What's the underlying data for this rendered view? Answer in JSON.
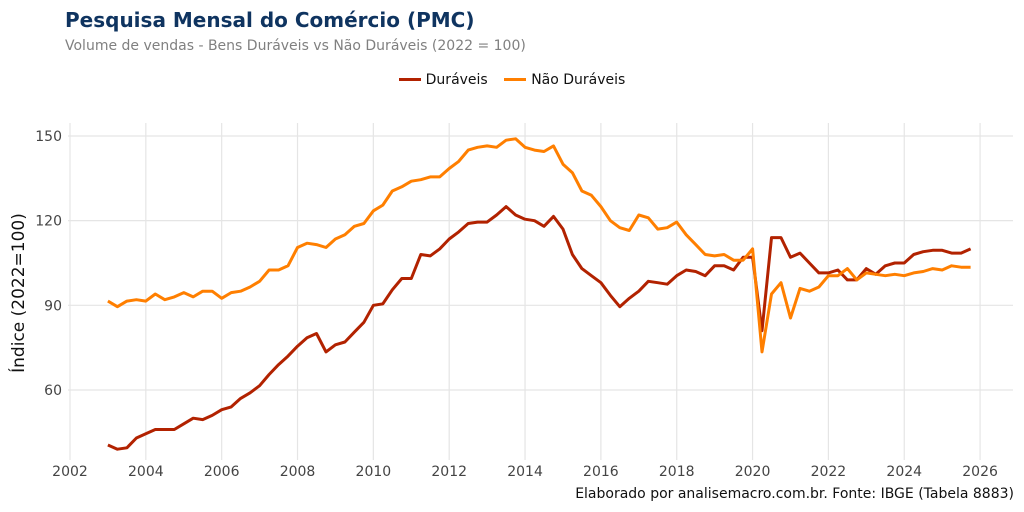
{
  "title": "Pesquisa Mensal do Comércio (PMC)",
  "subtitle": "Volume de vendas - Bens Duráveis vs Não Duráveis (2022 = 100)",
  "caption": "Elaborado por analisemacro.com.br. Fonte: IBGE (Tabela 8883)",
  "chart_data": {
    "type": "line",
    "title": "Pesquisa Mensal do Comércio (PMC)",
    "subtitle": "Volume de vendas - Bens Duráveis vs Não Duráveis (2022 = 100)",
    "xlabel": "",
    "ylabel": "Índice (2022=100)",
    "xlim": [
      2002,
      2026.9
    ],
    "ylim": [
      35,
      154.5
    ],
    "xticks": [
      2002,
      2004,
      2006,
      2008,
      2010,
      2012,
      2014,
      2016,
      2018,
      2020,
      2022,
      2024,
      2026
    ],
    "yticks": [
      60,
      90,
      120,
      150
    ],
    "grid": true,
    "legend_position": "top",
    "x_start": 2003.0,
    "x_step": 0.25,
    "series": [
      {
        "name": "Duráveis",
        "color": "#b22200",
        "values": [
          40.5,
          39,
          39.5,
          43,
          44.5,
          46,
          46,
          46,
          48,
          50,
          49.5,
          51,
          53,
          54,
          57,
          59,
          61.5,
          65.5,
          69,
          72,
          75.5,
          78.5,
          80,
          73.5,
          76,
          77,
          80.5,
          84,
          90,
          90.5,
          95.5,
          99.5,
          99.5,
          108,
          107.5,
          110,
          113.5,
          116,
          119,
          119.5,
          119.5,
          122,
          125,
          122,
          120.5,
          120,
          118,
          121.5,
          117,
          108,
          103,
          100.5,
          98,
          93.5,
          89.5,
          92.5,
          95,
          98.5,
          98,
          97.5,
          100.5,
          102.5,
          102,
          100.5,
          104,
          104,
          102.5,
          107,
          107,
          81,
          114,
          114,
          107,
          108.5,
          105,
          101.5,
          101.5,
          102.5,
          99,
          99,
          103,
          101,
          104,
          105,
          105,
          108,
          109,
          109.5,
          109.5,
          108.5,
          108.5,
          110
        ]
      },
      {
        "name": "Não Duráveis",
        "color": "#ff7f00",
        "values": [
          91.5,
          89.5,
          91.5,
          92,
          91.5,
          94,
          92,
          93,
          94.5,
          93,
          95,
          95,
          92.5,
          94.5,
          95,
          96.5,
          98.5,
          102.5,
          102.5,
          104,
          110.5,
          112,
          111.5,
          110.5,
          113.5,
          115,
          118,
          119,
          123.5,
          125.5,
          130.5,
          132,
          134,
          134.5,
          135.5,
          135.5,
          138.5,
          141,
          145,
          146,
          146.5,
          146,
          148.5,
          149,
          146,
          145,
          144.5,
          146.5,
          140,
          137,
          130.5,
          129,
          125,
          120,
          117.5,
          116.5,
          122,
          121,
          117,
          117.5,
          119.5,
          115,
          111.5,
          108,
          107.5,
          108,
          106,
          106,
          110,
          73.5,
          94,
          98,
          85.5,
          96,
          95,
          96.5,
          100.5,
          100.5,
          103,
          99,
          101.5,
          101,
          100.5,
          101,
          100.5,
          101.5,
          102,
          103,
          102.5,
          104,
          103.5,
          103.5
        ]
      }
    ]
  }
}
